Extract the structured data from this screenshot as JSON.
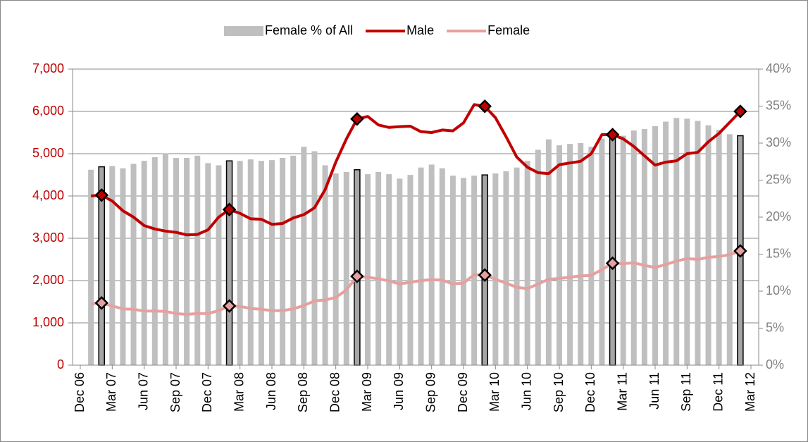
{
  "chart_data": {
    "type": "combo",
    "categories": [
      "Dec 06",
      null,
      null,
      "Mar 07",
      null,
      null,
      "Jun 07",
      null,
      null,
      "Sep 07",
      null,
      null,
      "Dec 07",
      null,
      null,
      "Mar 08",
      null,
      null,
      "Jun 08",
      null,
      null,
      "Sep 08",
      null,
      null,
      "Dec 08",
      null,
      null,
      "Mar 09",
      null,
      null,
      "Jun 09",
      null,
      null,
      "Sep 09",
      null,
      null,
      "Dec 09",
      null,
      null,
      "Mar 10",
      null,
      null,
      "Jun 10",
      null,
      null,
      "Sep 10",
      null,
      null,
      "Dec 10",
      null,
      null,
      "Mar 11",
      null,
      null,
      "Jun 11",
      null,
      null,
      "Sep 11",
      null,
      null,
      "Dec 11",
      null,
      null,
      "Mar 12"
    ],
    "series": [
      {
        "name": "Female % of All",
        "kind": "bar",
        "axis": "y2",
        "color": "#bfbfbf",
        "values": [
          null,
          26.4,
          26.8,
          26.9,
          26.6,
          27.2,
          27.6,
          28.1,
          28.6,
          28.0,
          28.0,
          28.3,
          27.3,
          27.0,
          27.6,
          27.6,
          27.8,
          27.6,
          27.7,
          28.0,
          28.3,
          29.5,
          28.9,
          27.0,
          25.9,
          26.1,
          26.4,
          25.8,
          26.1,
          25.8,
          25.2,
          25.7,
          26.7,
          27.1,
          26.6,
          25.6,
          25.3,
          25.6,
          25.7,
          25.9,
          26.2,
          26.7,
          27.6,
          29.1,
          30.5,
          29.7,
          29.9,
          30.0,
          29.5,
          30.6,
          31.1,
          31.0,
          31.7,
          31.9,
          32.3,
          32.9,
          33.4,
          33.3,
          33.0,
          32.4,
          31.8,
          31.2,
          31.0,
          null
        ]
      },
      {
        "name": "Male",
        "kind": "line",
        "color": "#c00000",
        "values": [
          null,
          4000,
          4020,
          3880,
          3650,
          3500,
          3300,
          3220,
          3170,
          3140,
          3080,
          3090,
          3200,
          3500,
          3680,
          3590,
          3460,
          3450,
          3330,
          3350,
          3480,
          3560,
          3720,
          4150,
          4800,
          5350,
          5820,
          5880,
          5680,
          5620,
          5640,
          5650,
          5520,
          5500,
          5560,
          5540,
          5730,
          6160,
          6120,
          5850,
          5400,
          4920,
          4680,
          4550,
          4530,
          4740,
          4780,
          4820,
          5000,
          5450,
          5450,
          5350,
          5170,
          4950,
          4730,
          4800,
          4830,
          5000,
          5030,
          5280,
          5480,
          5740,
          6000,
          null
        ]
      },
      {
        "name": "Female",
        "kind": "line",
        "color": "#e6a0a0",
        "values": [
          null,
          1450,
          1470,
          1400,
          1330,
          1320,
          1280,
          1280,
          1270,
          1220,
          1200,
          1220,
          1220,
          1290,
          1400,
          1390,
          1340,
          1320,
          1290,
          1290,
          1330,
          1410,
          1520,
          1540,
          1600,
          1780,
          2100,
          2080,
          2040,
          1990,
          1920,
          1960,
          2000,
          2020,
          2010,
          1920,
          1940,
          2140,
          2130,
          2030,
          1940,
          1840,
          1810,
          1920,
          2030,
          2050,
          2080,
          2110,
          2120,
          2260,
          2410,
          2400,
          2420,
          2360,
          2310,
          2380,
          2460,
          2520,
          2500,
          2550,
          2570,
          2610,
          2700,
          null
        ]
      }
    ],
    "highlight": [
      2,
      14,
      26,
      38,
      50,
      62
    ],
    "ylim": [
      0,
      7000
    ],
    "yticks": [
      0,
      {
        "value": 1000,
        "label": "1,000"
      },
      {
        "value": 2000,
        "label": "2,000"
      },
      {
        "value": 3000,
        "label": "3,000"
      },
      {
        "value": 4000,
        "label": "4,000"
      },
      {
        "value": 5000,
        "label": "5,000"
      },
      {
        "value": 6000,
        "label": "6,000"
      },
      {
        "value": 7000,
        "label": "7,000"
      }
    ],
    "y2lim": [
      0,
      40
    ],
    "y2ticks": [
      {
        "value": 0,
        "label": "0%"
      },
      {
        "value": 5,
        "label": "5%"
      },
      {
        "value": 10,
        "label": "10%"
      },
      {
        "value": 15,
        "label": "15%"
      },
      {
        "value": 20,
        "label": "20%"
      },
      {
        "value": 25,
        "label": "25%"
      },
      {
        "value": 30,
        "label": "30%"
      },
      {
        "value": 35,
        "label": "35%"
      },
      {
        "value": 40,
        "label": "40%"
      }
    ],
    "grid": true,
    "legend": "top"
  }
}
